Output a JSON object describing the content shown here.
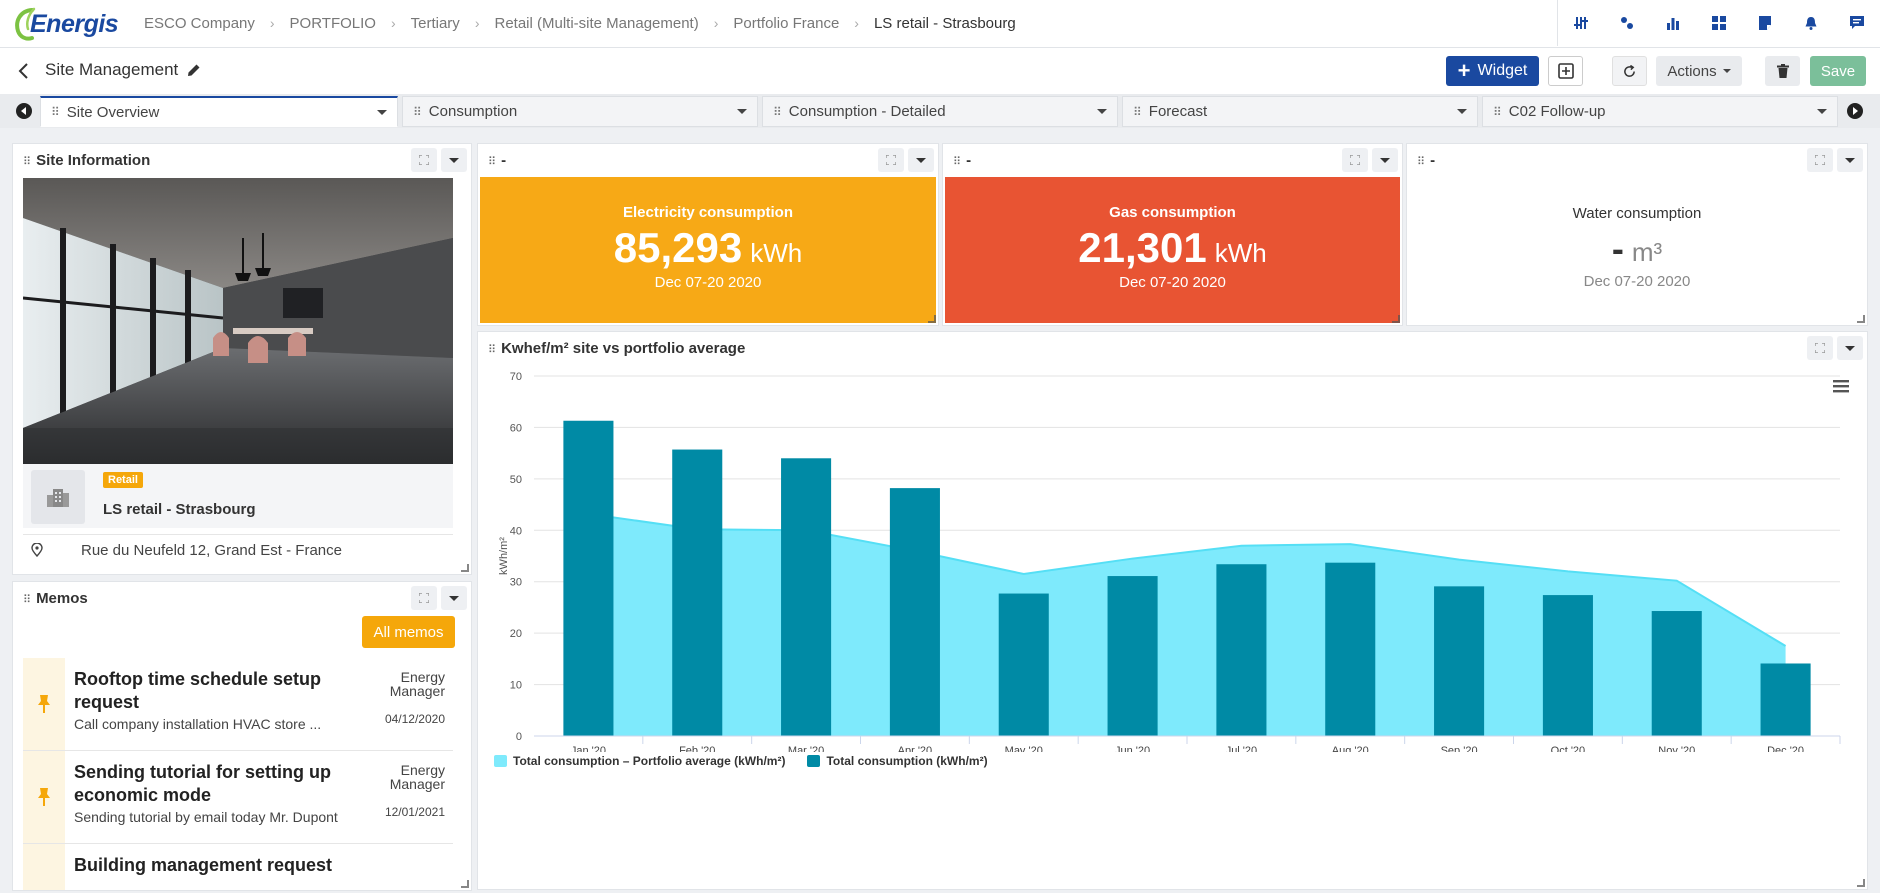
{
  "app": {
    "logo_text": "Energis"
  },
  "breadcrumb": [
    "ESCO Company",
    "PORTFOLIO",
    "Tertiary",
    "Retail (Multi-site Management)",
    "Portfolio France",
    "LS retail - Strasbourg"
  ],
  "top_icons": [
    "sliders-icon",
    "dots-icon",
    "bar-chart-icon",
    "dashboard-icon",
    "document-icon",
    "bell-icon",
    "chat-icon"
  ],
  "page": {
    "title": "Site Management",
    "widget_label": "Widget",
    "actions_label": "Actions",
    "save_label": "Save"
  },
  "tabs": [
    "Site Overview",
    "Consumption",
    "Consumption - Detailed",
    "Forecast",
    "C02 Follow-up"
  ],
  "site_info": {
    "title": "Site Information",
    "badge": "Retail",
    "name": "LS retail - Strasbourg",
    "address": "Rue du Neufeld 12, Grand Est - France"
  },
  "kpis": [
    {
      "panel_title": "-",
      "label": "Electricity consumption",
      "value": "85,293",
      "unit": "kWh",
      "date": "Dec 07-20 2020",
      "color": "#f7a916"
    },
    {
      "panel_title": "-",
      "label": "Gas consumption",
      "value": "21,301",
      "unit": "kWh",
      "date": "Dec 07-20 2020",
      "color": "#e85433"
    },
    {
      "panel_title": "-",
      "label": "Water consumption",
      "value": "-",
      "unit": "m³",
      "date": "Dec 07-20 2020",
      "color": "#ffffff"
    }
  ],
  "memos": {
    "title": "Memos",
    "all_label": "All memos",
    "items": [
      {
        "title": "Rooftop time schedule setup request",
        "desc": "Call company installation HVAC store ...",
        "author": "Energy Manager",
        "date": "04/12/2020"
      },
      {
        "title": "Sending tutorial for setting up economic mode",
        "desc": "Sending tutorial by email today Mr. Dupont",
        "author": "Energy Manager",
        "date": "12/01/2021"
      },
      {
        "title": "Building management request",
        "desc": "",
        "author": "",
        "date": ""
      }
    ]
  },
  "chart_data": {
    "type": "bar",
    "title": "Kwhef/m² site vs portfolio average",
    "panel_prefix": "",
    "xlabel": "",
    "ylabel": "kWh/m²",
    "ylim": [
      0,
      70
    ],
    "yticks": [
      0,
      10,
      20,
      30,
      40,
      50,
      60,
      70
    ],
    "categories": [
      "Jan '20",
      "Feb '20",
      "Mar '20",
      "Apr '20",
      "May '20",
      "Jun '20",
      "Jul '20",
      "Aug '20",
      "Sep '20",
      "Oct '20",
      "Nov '20",
      "Dec '20"
    ],
    "series": [
      {
        "name": "Total consumption – Portfolio average (kWh/m²)",
        "type": "area",
        "color": "#7eeafc",
        "values": [
          43.2,
          40.2,
          40.0,
          36.0,
          31.5,
          34.5,
          37.0,
          37.3,
          34.3,
          32.0,
          30.2,
          17.5
        ]
      },
      {
        "name": "Total consumption (kWh/m²)",
        "type": "bar",
        "color": "#008aa5",
        "values": [
          61.3,
          55.7,
          54.0,
          48.2,
          27.7,
          31.1,
          33.4,
          33.7,
          29.1,
          27.4,
          24.3,
          14.1
        ]
      }
    ],
    "legend_position": "bottom-left"
  }
}
